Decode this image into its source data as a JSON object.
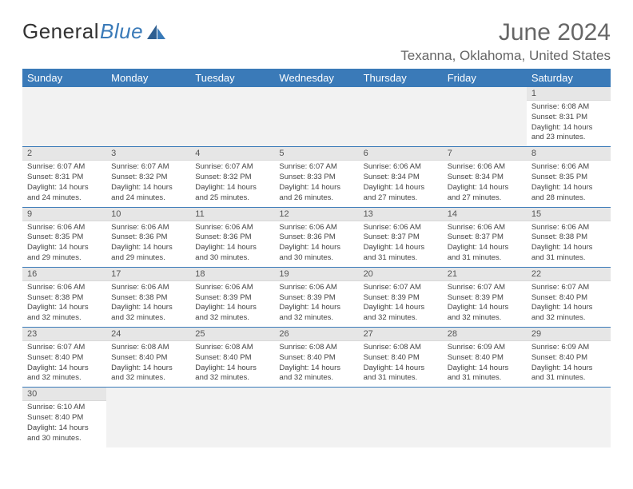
{
  "brand": {
    "part1": "General",
    "part2": "Blue",
    "sail_color": "#3a7ab8",
    "text_color": "#333333"
  },
  "title": {
    "month": "June 2024",
    "location": "Texanna, Oklahoma, United States"
  },
  "colors": {
    "header_bg": "#3a7ab8",
    "header_fg": "#ffffff",
    "daynum_bg": "#e6e6e6",
    "cell_border": "#3a7ab8",
    "text": "#444444"
  },
  "daynames": [
    "Sunday",
    "Monday",
    "Tuesday",
    "Wednesday",
    "Thursday",
    "Friday",
    "Saturday"
  ],
  "weeks": [
    [
      null,
      null,
      null,
      null,
      null,
      null,
      {
        "n": "1",
        "sr": "Sunrise: 6:08 AM",
        "ss": "Sunset: 8:31 PM",
        "dl1": "Daylight: 14 hours",
        "dl2": "and 23 minutes."
      }
    ],
    [
      {
        "n": "2",
        "sr": "Sunrise: 6:07 AM",
        "ss": "Sunset: 8:31 PM",
        "dl1": "Daylight: 14 hours",
        "dl2": "and 24 minutes."
      },
      {
        "n": "3",
        "sr": "Sunrise: 6:07 AM",
        "ss": "Sunset: 8:32 PM",
        "dl1": "Daylight: 14 hours",
        "dl2": "and 24 minutes."
      },
      {
        "n": "4",
        "sr": "Sunrise: 6:07 AM",
        "ss": "Sunset: 8:32 PM",
        "dl1": "Daylight: 14 hours",
        "dl2": "and 25 minutes."
      },
      {
        "n": "5",
        "sr": "Sunrise: 6:07 AM",
        "ss": "Sunset: 8:33 PM",
        "dl1": "Daylight: 14 hours",
        "dl2": "and 26 minutes."
      },
      {
        "n": "6",
        "sr": "Sunrise: 6:06 AM",
        "ss": "Sunset: 8:34 PM",
        "dl1": "Daylight: 14 hours",
        "dl2": "and 27 minutes."
      },
      {
        "n": "7",
        "sr": "Sunrise: 6:06 AM",
        "ss": "Sunset: 8:34 PM",
        "dl1": "Daylight: 14 hours",
        "dl2": "and 27 minutes."
      },
      {
        "n": "8",
        "sr": "Sunrise: 6:06 AM",
        "ss": "Sunset: 8:35 PM",
        "dl1": "Daylight: 14 hours",
        "dl2": "and 28 minutes."
      }
    ],
    [
      {
        "n": "9",
        "sr": "Sunrise: 6:06 AM",
        "ss": "Sunset: 8:35 PM",
        "dl1": "Daylight: 14 hours",
        "dl2": "and 29 minutes."
      },
      {
        "n": "10",
        "sr": "Sunrise: 6:06 AM",
        "ss": "Sunset: 8:36 PM",
        "dl1": "Daylight: 14 hours",
        "dl2": "and 29 minutes."
      },
      {
        "n": "11",
        "sr": "Sunrise: 6:06 AM",
        "ss": "Sunset: 8:36 PM",
        "dl1": "Daylight: 14 hours",
        "dl2": "and 30 minutes."
      },
      {
        "n": "12",
        "sr": "Sunrise: 6:06 AM",
        "ss": "Sunset: 8:36 PM",
        "dl1": "Daylight: 14 hours",
        "dl2": "and 30 minutes."
      },
      {
        "n": "13",
        "sr": "Sunrise: 6:06 AM",
        "ss": "Sunset: 8:37 PM",
        "dl1": "Daylight: 14 hours",
        "dl2": "and 31 minutes."
      },
      {
        "n": "14",
        "sr": "Sunrise: 6:06 AM",
        "ss": "Sunset: 8:37 PM",
        "dl1": "Daylight: 14 hours",
        "dl2": "and 31 minutes."
      },
      {
        "n": "15",
        "sr": "Sunrise: 6:06 AM",
        "ss": "Sunset: 8:38 PM",
        "dl1": "Daylight: 14 hours",
        "dl2": "and 31 minutes."
      }
    ],
    [
      {
        "n": "16",
        "sr": "Sunrise: 6:06 AM",
        "ss": "Sunset: 8:38 PM",
        "dl1": "Daylight: 14 hours",
        "dl2": "and 32 minutes."
      },
      {
        "n": "17",
        "sr": "Sunrise: 6:06 AM",
        "ss": "Sunset: 8:38 PM",
        "dl1": "Daylight: 14 hours",
        "dl2": "and 32 minutes."
      },
      {
        "n": "18",
        "sr": "Sunrise: 6:06 AM",
        "ss": "Sunset: 8:39 PM",
        "dl1": "Daylight: 14 hours",
        "dl2": "and 32 minutes."
      },
      {
        "n": "19",
        "sr": "Sunrise: 6:06 AM",
        "ss": "Sunset: 8:39 PM",
        "dl1": "Daylight: 14 hours",
        "dl2": "and 32 minutes."
      },
      {
        "n": "20",
        "sr": "Sunrise: 6:07 AM",
        "ss": "Sunset: 8:39 PM",
        "dl1": "Daylight: 14 hours",
        "dl2": "and 32 minutes."
      },
      {
        "n": "21",
        "sr": "Sunrise: 6:07 AM",
        "ss": "Sunset: 8:39 PM",
        "dl1": "Daylight: 14 hours",
        "dl2": "and 32 minutes."
      },
      {
        "n": "22",
        "sr": "Sunrise: 6:07 AM",
        "ss": "Sunset: 8:40 PM",
        "dl1": "Daylight: 14 hours",
        "dl2": "and 32 minutes."
      }
    ],
    [
      {
        "n": "23",
        "sr": "Sunrise: 6:07 AM",
        "ss": "Sunset: 8:40 PM",
        "dl1": "Daylight: 14 hours",
        "dl2": "and 32 minutes."
      },
      {
        "n": "24",
        "sr": "Sunrise: 6:08 AM",
        "ss": "Sunset: 8:40 PM",
        "dl1": "Daylight: 14 hours",
        "dl2": "and 32 minutes."
      },
      {
        "n": "25",
        "sr": "Sunrise: 6:08 AM",
        "ss": "Sunset: 8:40 PM",
        "dl1": "Daylight: 14 hours",
        "dl2": "and 32 minutes."
      },
      {
        "n": "26",
        "sr": "Sunrise: 6:08 AM",
        "ss": "Sunset: 8:40 PM",
        "dl1": "Daylight: 14 hours",
        "dl2": "and 32 minutes."
      },
      {
        "n": "27",
        "sr": "Sunrise: 6:08 AM",
        "ss": "Sunset: 8:40 PM",
        "dl1": "Daylight: 14 hours",
        "dl2": "and 31 minutes."
      },
      {
        "n": "28",
        "sr": "Sunrise: 6:09 AM",
        "ss": "Sunset: 8:40 PM",
        "dl1": "Daylight: 14 hours",
        "dl2": "and 31 minutes."
      },
      {
        "n": "29",
        "sr": "Sunrise: 6:09 AM",
        "ss": "Sunset: 8:40 PM",
        "dl1": "Daylight: 14 hours",
        "dl2": "and 31 minutes."
      }
    ],
    [
      {
        "n": "30",
        "sr": "Sunrise: 6:10 AM",
        "ss": "Sunset: 8:40 PM",
        "dl1": "Daylight: 14 hours",
        "dl2": "and 30 minutes."
      },
      null,
      null,
      null,
      null,
      null,
      null
    ]
  ]
}
